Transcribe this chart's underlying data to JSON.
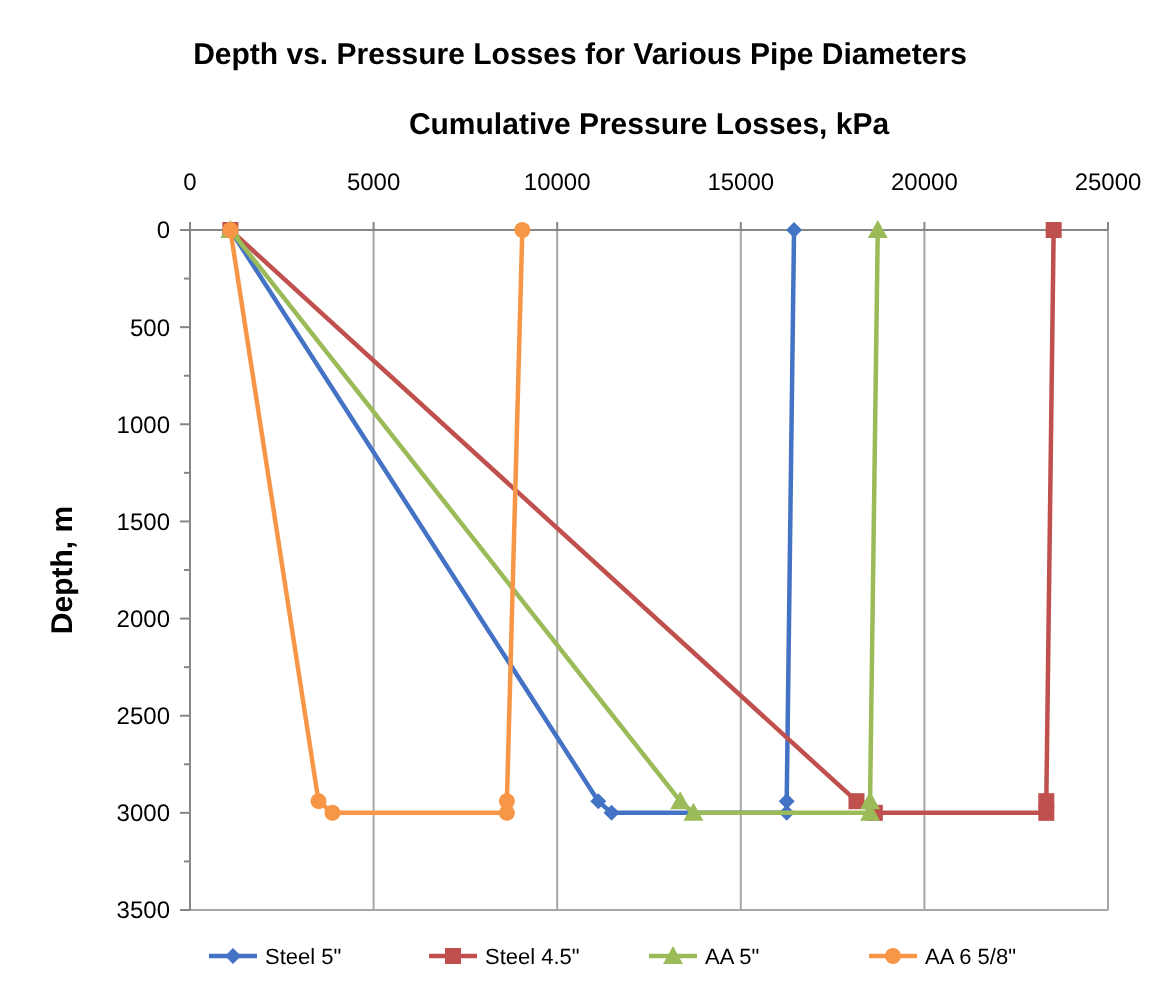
{
  "chart_data": {
    "type": "line",
    "title": "Depth vs. Pressure Losses for Various Pipe Diameters",
    "xlabel": "Cumulative Pressure Losses, kPa",
    "ylabel": "Depth, m",
    "xlim": [
      0,
      25000
    ],
    "xticks": [
      0,
      5000,
      10000,
      15000,
      20000,
      25000
    ],
    "ylim": [
      3500,
      0
    ],
    "yticks": [
      0,
      500,
      1000,
      1500,
      2000,
      2500,
      3000,
      3500
    ],
    "grid": "x",
    "legend": "bottom",
    "series": [
      {
        "name": "Steel 5\"",
        "color": "#4472c4",
        "marker": "diamond",
        "x": [
          16450,
          16250,
          16250,
          11480,
          11120,
          1100
        ],
        "values": [
          0,
          2940,
          3000,
          3000,
          2940,
          0
        ]
      },
      {
        "name": "Steel 4.5\"",
        "color": "#c0504d",
        "marker": "square",
        "x": [
          23520,
          23320,
          23320,
          18650,
          18150,
          1100
        ],
        "values": [
          0,
          2940,
          3000,
          3000,
          2940,
          0
        ]
      },
      {
        "name": "AA  5\"",
        "color": "#9bbb59",
        "marker": "triangle",
        "x": [
          18730,
          18520,
          18520,
          13710,
          13350,
          1100
        ],
        "values": [
          0,
          2940,
          3000,
          3000,
          2940,
          0
        ]
      },
      {
        "name": "AA  6 5/8\"",
        "color": "#f79646",
        "marker": "circle",
        "x": [
          9050,
          8630,
          8630,
          3880,
          3500,
          1100
        ],
        "values": [
          0,
          2940,
          3000,
          3000,
          2940,
          0
        ]
      }
    ]
  }
}
